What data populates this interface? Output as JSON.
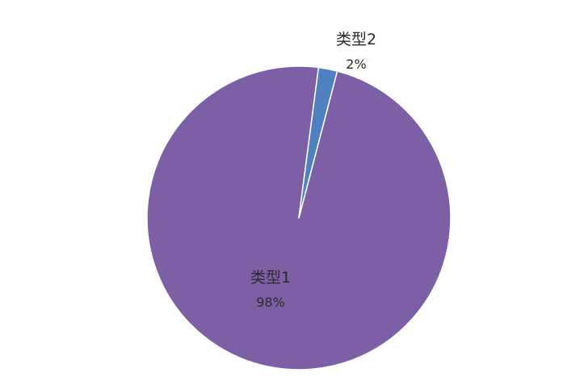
{
  "chart_data": {
    "type": "pie",
    "title": "",
    "slices": [
      {
        "label": "类型1",
        "value": 98,
        "display": "98%",
        "color": "#7d5fa6"
      },
      {
        "label": "类型2",
        "value": 2,
        "display": "2%",
        "color": "#4f80c0"
      }
    ],
    "start": "top",
    "direction": "clockwise",
    "legend": "none"
  }
}
